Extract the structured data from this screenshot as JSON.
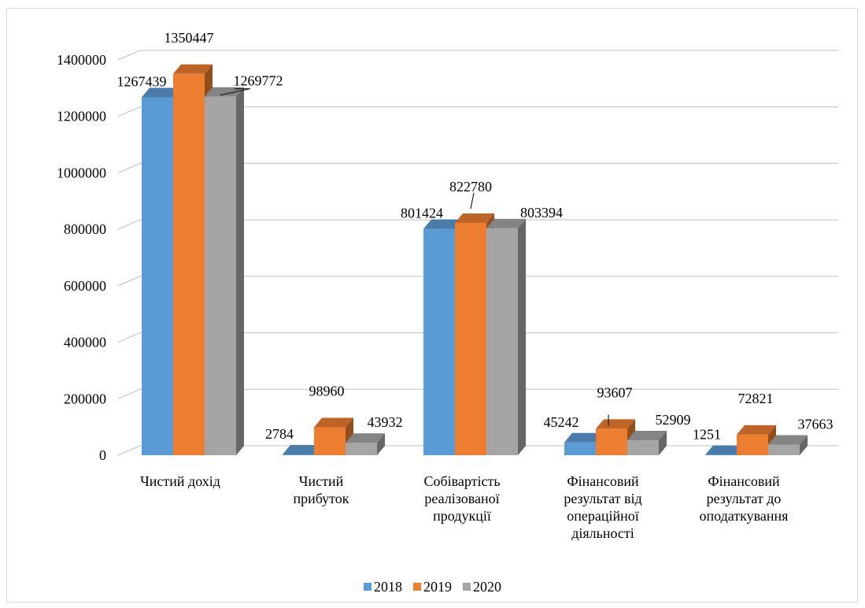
{
  "chart_data": {
    "type": "bar",
    "categories": [
      "Чистий дохід",
      "Чистий\nприбуток",
      "Собівартість\nреалізованої\nпродукції",
      "Фінансовий\nрезультат від\nопераційної\nдіяльності",
      "Фінансовий\nрезультат до\nоподаткування"
    ],
    "series": [
      {
        "name": "2018",
        "color": "#5B9BD5",
        "values": [
          1267439,
          2784,
          801424,
          45242,
          1251
        ]
      },
      {
        "name": "2019",
        "color": "#ED7D31",
        "values": [
          1350447,
          98960,
          822780,
          93607,
          72821
        ]
      },
      {
        "name": "2020",
        "color": "#A5A5A5",
        "values": [
          1269772,
          43932,
          803394,
          52909,
          37663
        ]
      }
    ],
    "data_labels": [
      [
        "1267439",
        "1350447",
        "1269772"
      ],
      [
        "2784",
        "98960",
        "43932"
      ],
      [
        "801424",
        "822780",
        "803394"
      ],
      [
        "45242",
        "93607",
        "52909"
      ],
      [
        "1251",
        "72821",
        "37663"
      ]
    ],
    "yticks": [
      "0",
      "200000",
      "400000",
      "600000",
      "800000",
      "1000000",
      "1200000",
      "1400000"
    ],
    "ylim": [
      0,
      1400000
    ],
    "grid": true,
    "legend_position": "bottom",
    "title": "",
    "xlabel": "",
    "ylabel": ""
  }
}
